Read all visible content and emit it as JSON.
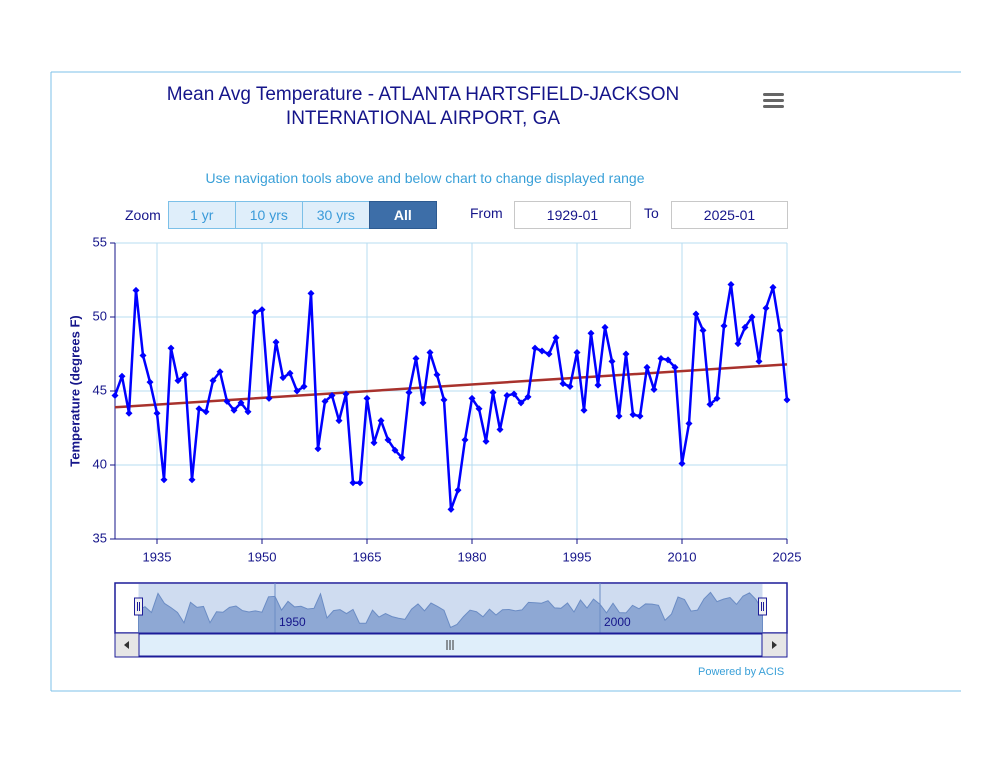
{
  "chart_data": {
    "type": "line",
    "title": "Mean Avg Temperature  - ATLANTA HARTSFIELD-JACKSON INTERNATIONAL AIRPORT, GA",
    "subtitle": "Use navigation tools above and below chart to change displayed range",
    "y_label": "Temperature (degrees F)",
    "zoom_label": "Zoom",
    "zoom_buttons": [
      "1 yr",
      "10 yrs",
      "30 yrs",
      "All"
    ],
    "zoom_selected": 3,
    "from_label": "From",
    "from_value": "1929-01",
    "to_label": "To",
    "to_value": "2025-01",
    "credits": "Powered by ACIS",
    "x": [
      1929,
      1930,
      1931,
      1932,
      1933,
      1934,
      1935,
      1936,
      1937,
      1938,
      1939,
      1940,
      1941,
      1942,
      1943,
      1944,
      1945,
      1946,
      1947,
      1948,
      1949,
      1950,
      1951,
      1952,
      1953,
      1954,
      1955,
      1956,
      1957,
      1958,
      1959,
      1960,
      1961,
      1962,
      1963,
      1964,
      1965,
      1966,
      1967,
      1968,
      1969,
      1970,
      1971,
      1972,
      1973,
      1974,
      1975,
      1976,
      1977,
      1978,
      1979,
      1980,
      1981,
      1982,
      1983,
      1984,
      1985,
      1986,
      1987,
      1988,
      1989,
      1990,
      1991,
      1992,
      1993,
      1994,
      1995,
      1996,
      1997,
      1998,
      1999,
      2000,
      2001,
      2002,
      2003,
      2004,
      2005,
      2006,
      2007,
      2008,
      2009,
      2010,
      2011,
      2012,
      2013,
      2014,
      2015,
      2016,
      2017,
      2018,
      2019,
      2020,
      2021,
      2022,
      2023,
      2024,
      2025
    ],
    "series": [
      {
        "color": "#0000ff",
        "values": [
          44.7,
          46.0,
          43.5,
          51.8,
          47.4,
          45.6,
          43.5,
          39.0,
          47.9,
          45.7,
          46.1,
          39.0,
          43.8,
          43.6,
          45.7,
          46.3,
          44.3,
          43.7,
          44.2,
          43.6,
          50.3,
          50.5,
          44.5,
          48.3,
          45.9,
          46.2,
          45.0,
          45.3,
          51.6,
          41.1,
          44.3,
          44.7,
          43.0,
          44.8,
          38.8,
          38.8,
          44.5,
          41.5,
          43.0,
          41.7,
          41.0,
          40.5,
          44.9,
          47.2,
          44.2,
          47.6,
          46.1,
          44.4,
          37.0,
          38.3,
          41.7,
          44.5,
          43.8,
          41.6,
          44.9,
          42.4,
          44.7,
          44.8,
          44.2,
          44.6,
          47.9,
          47.7,
          47.5,
          48.6,
          45.5,
          45.3,
          47.6,
          43.7,
          48.9,
          45.4,
          49.3,
          47.0,
          43.3,
          47.5,
          43.4,
          43.3,
          46.6,
          45.1,
          47.2,
          47.1,
          46.6,
          40.1,
          42.8,
          50.2,
          49.1,
          44.1,
          44.5,
          49.4,
          52.2,
          48.2,
          49.3,
          50.0,
          47.0,
          50.6,
          52.0,
          49.1,
          44.4
        ]
      }
    ],
    "trend": {
      "color": "#a8322d",
      "x": [
        1929,
        2025
      ],
      "values": [
        43.9,
        46.8
      ]
    },
    "xlim": [
      1929,
      2025
    ],
    "ylim": [
      35,
      55
    ],
    "xticks": [
      1935,
      1950,
      1965,
      1980,
      1995,
      2010,
      2025
    ],
    "yticks": [
      35,
      40,
      45,
      50,
      55
    ],
    "grid": true,
    "navigator": {
      "xticks": [
        1950,
        2000
      ]
    }
  }
}
